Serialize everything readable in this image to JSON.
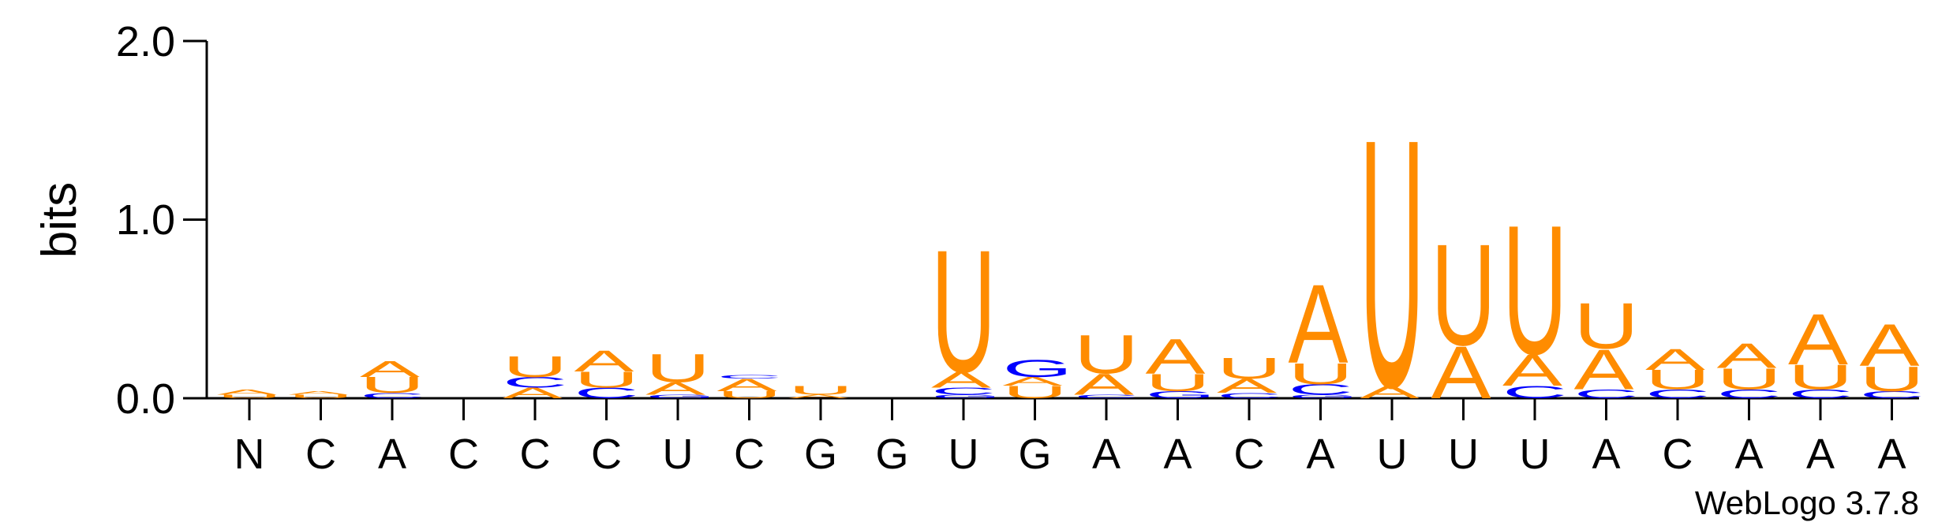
{
  "chart_data": {
    "type": "sequence-logo",
    "ylabel": "bits",
    "ylim": [
      0,
      2
    ],
    "yticks": [
      "0.0",
      "1.0",
      "2.0"
    ],
    "credit": "WebLogo 3.7.8",
    "colors": {
      "A": "#ff8c00",
      "U": "#ff8c00",
      "C": "#0000ff",
      "G": "#0000ff"
    },
    "positions": [
      {
        "label": "N",
        "stack": [
          [
            "U",
            0.02
          ],
          [
            "A",
            0.03
          ]
        ]
      },
      {
        "label": "C",
        "stack": [
          [
            "U",
            0.02
          ],
          [
            "A",
            0.02
          ]
        ]
      },
      {
        "label": "A",
        "stack": [
          [
            "C",
            0.03
          ],
          [
            "U",
            0.09
          ],
          [
            "A",
            0.09
          ]
        ]
      },
      {
        "label": "C",
        "stack": []
      },
      {
        "label": "C",
        "stack": [
          [
            "A",
            0.06
          ],
          [
            "C",
            0.06
          ],
          [
            "U",
            0.12
          ]
        ]
      },
      {
        "label": "C",
        "stack": [
          [
            "C",
            0.06
          ],
          [
            "U",
            0.09
          ],
          [
            "A",
            0.12
          ]
        ]
      },
      {
        "label": "U",
        "stack": [
          [
            "G",
            0.02
          ],
          [
            "A",
            0.07
          ],
          [
            "U",
            0.16
          ]
        ]
      },
      {
        "label": "C",
        "stack": [
          [
            "U",
            0.04
          ],
          [
            "A",
            0.07
          ],
          [
            "C",
            0.02
          ]
        ]
      },
      {
        "label": "G",
        "stack": [
          [
            "A",
            0.02
          ],
          [
            "U",
            0.05
          ]
        ]
      },
      {
        "label": "G",
        "stack": []
      },
      {
        "label": "U",
        "stack": [
          [
            "G",
            0.02
          ],
          [
            "C",
            0.04
          ],
          [
            "A",
            0.09
          ],
          [
            "U",
            0.7
          ]
        ]
      },
      {
        "label": "G",
        "stack": [
          [
            "U",
            0.07
          ],
          [
            "A",
            0.05
          ],
          [
            "G",
            0.1
          ]
        ]
      },
      {
        "label": "A",
        "stack": [
          [
            "C",
            0.02
          ],
          [
            "A",
            0.12
          ],
          [
            "U",
            0.22
          ]
        ]
      },
      {
        "label": "A",
        "stack": [
          [
            "G",
            0.04
          ],
          [
            "U",
            0.1
          ],
          [
            "A",
            0.2
          ]
        ]
      },
      {
        "label": "C",
        "stack": [
          [
            "C",
            0.03
          ],
          [
            "A",
            0.08
          ],
          [
            "U",
            0.12
          ]
        ]
      },
      {
        "label": "A",
        "stack": [
          [
            "G",
            0.02
          ],
          [
            "C",
            0.06
          ],
          [
            "U",
            0.12
          ],
          [
            "A",
            0.45
          ]
        ]
      },
      {
        "label": "U",
        "stack": [
          [
            "A",
            0.07
          ],
          [
            "U",
            1.42
          ]
        ]
      },
      {
        "label": "U",
        "stack": [
          [
            "A",
            0.3
          ],
          [
            "U",
            0.58
          ]
        ]
      },
      {
        "label": "U",
        "stack": [
          [
            "C",
            0.07
          ],
          [
            "A",
            0.18
          ],
          [
            "U",
            0.74
          ]
        ]
      },
      {
        "label": "A",
        "stack": [
          [
            "C",
            0.05
          ],
          [
            "A",
            0.23
          ],
          [
            "U",
            0.26
          ]
        ]
      },
      {
        "label": "C",
        "stack": [
          [
            "C",
            0.05
          ],
          [
            "U",
            0.11
          ],
          [
            "A",
            0.12
          ]
        ]
      },
      {
        "label": "A",
        "stack": [
          [
            "C",
            0.05
          ],
          [
            "U",
            0.12
          ],
          [
            "A",
            0.14
          ]
        ]
      },
      {
        "label": "A",
        "stack": [
          [
            "C",
            0.05
          ],
          [
            "U",
            0.14
          ],
          [
            "A",
            0.29
          ]
        ]
      },
      {
        "label": "A",
        "stack": [
          [
            "C",
            0.04
          ],
          [
            "U",
            0.14
          ],
          [
            "A",
            0.24
          ]
        ]
      }
    ]
  }
}
